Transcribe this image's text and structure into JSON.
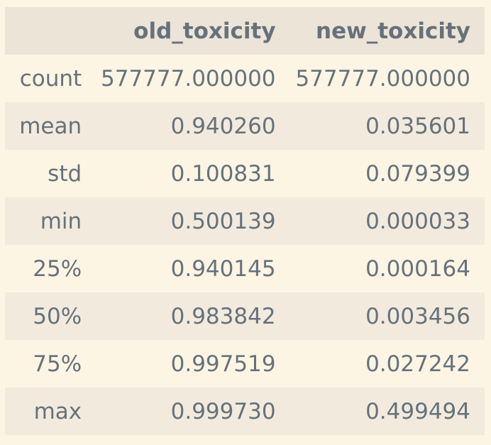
{
  "table": {
    "columns": [
      "",
      "old_toxicity",
      "new_toxicity"
    ],
    "rows": [
      {
        "label": "count",
        "values": [
          "577777.000000",
          "577777.000000"
        ]
      },
      {
        "label": "mean",
        "values": [
          "0.940260",
          "0.035601"
        ]
      },
      {
        "label": "std",
        "values": [
          "0.100831",
          "0.079399"
        ]
      },
      {
        "label": "min",
        "values": [
          "0.500139",
          "0.000033"
        ]
      },
      {
        "label": "25%",
        "values": [
          "0.940145",
          "0.000164"
        ]
      },
      {
        "label": "50%",
        "values": [
          "0.983842",
          "0.003456"
        ]
      },
      {
        "label": "75%",
        "values": [
          "0.997519",
          "0.027242"
        ]
      },
      {
        "label": "max",
        "values": [
          "0.999730",
          "0.499494"
        ]
      }
    ]
  },
  "colors": {
    "background": "#fcf5e4",
    "header_row": "#ece4d7",
    "striped_row": "#f2ebdd",
    "text": "#65727b"
  }
}
